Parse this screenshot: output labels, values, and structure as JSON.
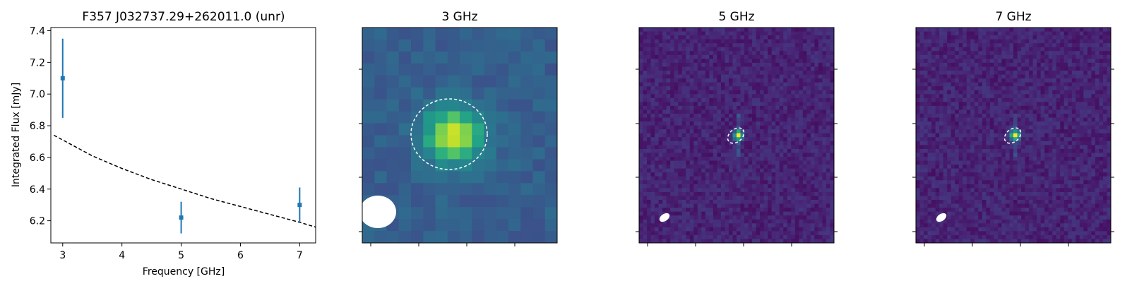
{
  "chart_data": [
    {
      "type": "scatter",
      "title": "F357 J032737.29+262011.0 (unr)",
      "xlabel": "Frequency [GHz]",
      "ylabel": "Integrated Flux [mJy]",
      "xlim": [
        2.8,
        7.27
      ],
      "ylim": [
        6.06,
        7.42
      ],
      "xticks": [
        "3",
        "4",
        "5",
        "6",
        "7"
      ],
      "yticks": [
        "6.2",
        "6.4",
        "6.6",
        "6.8",
        "7.0",
        "7.2",
        "7.4"
      ],
      "series": [
        {
          "kind": "errorbar",
          "color": "#1f77b4",
          "points": [
            {
              "x": 3,
              "y": 7.1,
              "err": 0.25
            },
            {
              "x": 5,
              "y": 6.22,
              "err": 0.1
            },
            {
              "x": 7,
              "y": 6.3,
              "err": 0.11
            }
          ]
        },
        {
          "kind": "model-fit",
          "style": "dashed",
          "color": "#000000",
          "x": [
            2.85,
            3.0,
            3.5,
            4.0,
            4.5,
            5.0,
            5.5,
            6.0,
            6.5,
            7.0,
            7.27
          ],
          "y": [
            6.74,
            6.71,
            6.61,
            6.53,
            6.46,
            6.4,
            6.34,
            6.29,
            6.24,
            6.19,
            6.16
          ]
        }
      ]
    },
    {
      "type": "heatmap",
      "title": "3 GHz",
      "colormap": "viridis",
      "grid": [
        16,
        18
      ],
      "source": {
        "col": 7.0,
        "row": 8.5,
        "sigma": 1.6,
        "peak": 0.62
      },
      "aperture": {
        "shape": "circle",
        "style": "dashed",
        "color": "#ffffff"
      },
      "beam": {
        "shape": "ellipse",
        "color": "#ffffff",
        "angle_deg": 0
      }
    },
    {
      "type": "heatmap",
      "title": "5 GHz",
      "colormap": "viridis",
      "grid": [
        50,
        55
      ],
      "source": {
        "col": 25.0,
        "row": 27.0,
        "sigma": 0.8,
        "peak": 1.0
      },
      "aperture": {
        "shape": "ellipse",
        "style": "dashed",
        "color": "#ffffff",
        "angle_deg": -40
      },
      "beam": {
        "shape": "ellipse",
        "color": "#ffffff",
        "angle_deg": -35
      }
    },
    {
      "type": "heatmap",
      "title": "7 GHz",
      "colormap": "viridis",
      "grid": [
        50,
        55
      ],
      "source": {
        "col": 25.0,
        "row": 27.0,
        "sigma": 0.8,
        "peak": 1.0
      },
      "aperture": {
        "shape": "ellipse",
        "style": "dashed",
        "color": "#ffffff",
        "angle_deg": -40
      },
      "beam": {
        "shape": "ellipse",
        "color": "#ffffff",
        "angle_deg": -35
      }
    }
  ]
}
